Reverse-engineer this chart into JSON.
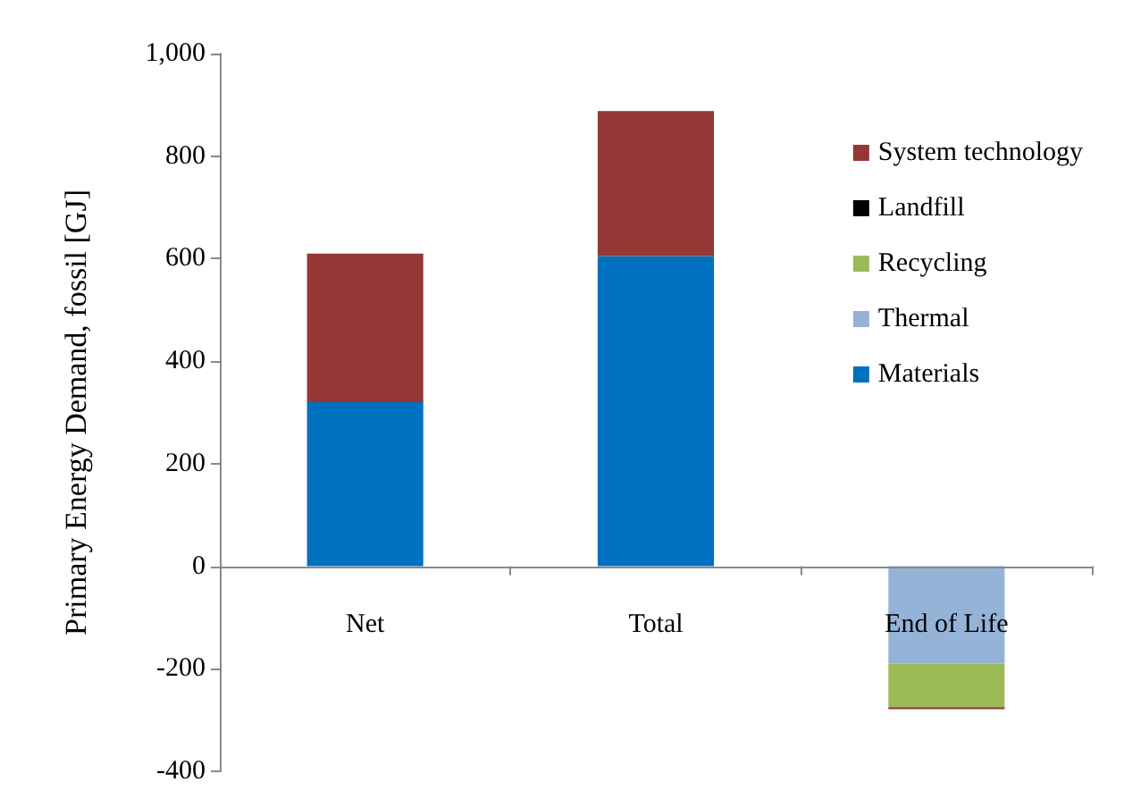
{
  "chart_data": {
    "type": "bar",
    "stacked": true,
    "ylabel": "Primary Energy Demand, fossil [GJ]",
    "categories": [
      "Net",
      "Total",
      "End of Life"
    ],
    "series": [
      {
        "name": "Materials",
        "color": "#0070c0",
        "values": [
          320,
          605,
          null
        ]
      },
      {
        "name": "Thermal",
        "color": "#95b3d7",
        "values": [
          null,
          null,
          -190
        ]
      },
      {
        "name": "Recycling",
        "color": "#9bbb59",
        "values": [
          null,
          null,
          -85
        ]
      },
      {
        "name": "Landfill",
        "color": "#000000",
        "values": [
          null,
          null,
          null
        ]
      },
      {
        "name": "System technology",
        "color": "#953735",
        "values": [
          290,
          283,
          -4
        ]
      }
    ],
    "ylim": [
      -400,
      1000
    ],
    "yticks": [
      -400,
      -200,
      0,
      200,
      400,
      600,
      800,
      {
        "value": 1000,
        "label": "1,000"
      }
    ],
    "legend": "right"
  }
}
